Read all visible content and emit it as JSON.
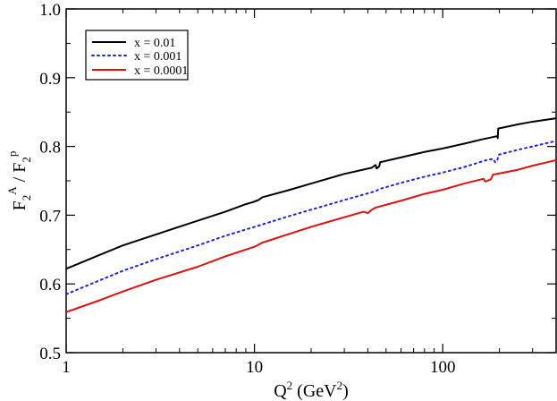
{
  "chart_data": {
    "type": "line",
    "xscale": "log",
    "xlim": [
      1,
      400
    ],
    "ylim": [
      0.5,
      1.0
    ],
    "xticks": [
      1,
      10,
      100
    ],
    "xtick_labels": [
      "1",
      "10",
      "100"
    ],
    "yticks": [
      0.5,
      0.6,
      0.7,
      0.8,
      0.9,
      1.0
    ],
    "ytick_labels": [
      "0.5",
      "0.6",
      "0.7",
      "0.8",
      "0.9",
      "1.0"
    ],
    "xlabel": {
      "base": "Q",
      "sup": "2",
      "unit_open": " (GeV",
      "unit_sup": "2",
      "unit_close": ")"
    },
    "ylabel": {
      "num": "F",
      "num_sub": "2",
      "num_sup": "A",
      "slash": " / ",
      "den": "F",
      "den_sub": "2",
      "den_sup": "p"
    },
    "legend_position": "top-left",
    "series": [
      {
        "name": "x = 0.01",
        "color": "#000000",
        "style": "solid",
        "points": [
          [
            1,
            0.622
          ],
          [
            1.5,
            0.642
          ],
          [
            2,
            0.656
          ],
          [
            3,
            0.672
          ],
          [
            5,
            0.692
          ],
          [
            7,
            0.705
          ],
          [
            9,
            0.716
          ],
          [
            9.8,
            0.719
          ],
          [
            10.5,
            0.722
          ],
          [
            11,
            0.726
          ],
          [
            15,
            0.736
          ],
          [
            20,
            0.746
          ],
          [
            30,
            0.76
          ],
          [
            42,
            0.769
          ],
          [
            44,
            0.773
          ],
          [
            44.5,
            0.768
          ],
          [
            46,
            0.771
          ],
          [
            46.5,
            0.777
          ],
          [
            60,
            0.784
          ],
          [
            80,
            0.792
          ],
          [
            100,
            0.797
          ],
          [
            130,
            0.804
          ],
          [
            160,
            0.81
          ],
          [
            195,
            0.815
          ],
          [
            196,
            0.812
          ],
          [
            197,
            0.826
          ],
          [
            250,
            0.832
          ],
          [
            300,
            0.836
          ],
          [
            400,
            0.841
          ]
        ]
      },
      {
        "name": "x = 0.001",
        "color": "#1f24e0",
        "style": "dotted",
        "points": [
          [
            1,
            0.585
          ],
          [
            1.5,
            0.605
          ],
          [
            2,
            0.619
          ],
          [
            3,
            0.636
          ],
          [
            5,
            0.656
          ],
          [
            7,
            0.67
          ],
          [
            10,
            0.683
          ],
          [
            15,
            0.698
          ],
          [
            20,
            0.708
          ],
          [
            30,
            0.722
          ],
          [
            44,
            0.735
          ],
          [
            46,
            0.738
          ],
          [
            60,
            0.747
          ],
          [
            80,
            0.756
          ],
          [
            100,
            0.762
          ],
          [
            130,
            0.77
          ],
          [
            170,
            0.78
          ],
          [
            185,
            0.782
          ],
          [
            190,
            0.777
          ],
          [
            195,
            0.78
          ],
          [
            198,
            0.788
          ],
          [
            250,
            0.795
          ],
          [
            300,
            0.8
          ],
          [
            400,
            0.808
          ]
        ]
      },
      {
        "name": "x = 0.0001",
        "color": "#e01010",
        "style": "solid",
        "points": [
          [
            1,
            0.559
          ],
          [
            1.5,
            0.576
          ],
          [
            2,
            0.589
          ],
          [
            3,
            0.606
          ],
          [
            5,
            0.625
          ],
          [
            7,
            0.64
          ],
          [
            9,
            0.65
          ],
          [
            10,
            0.654
          ],
          [
            11,
            0.66
          ],
          [
            15,
            0.672
          ],
          [
            20,
            0.683
          ],
          [
            30,
            0.697
          ],
          [
            38,
            0.705
          ],
          [
            40,
            0.703
          ],
          [
            42,
            0.708
          ],
          [
            44,
            0.711
          ],
          [
            60,
            0.721
          ],
          [
            80,
            0.731
          ],
          [
            100,
            0.737
          ],
          [
            130,
            0.746
          ],
          [
            165,
            0.753
          ],
          [
            168,
            0.749
          ],
          [
            180,
            0.752
          ],
          [
            185,
            0.759
          ],
          [
            250,
            0.766
          ],
          [
            300,
            0.772
          ],
          [
            400,
            0.78
          ]
        ]
      }
    ]
  }
}
